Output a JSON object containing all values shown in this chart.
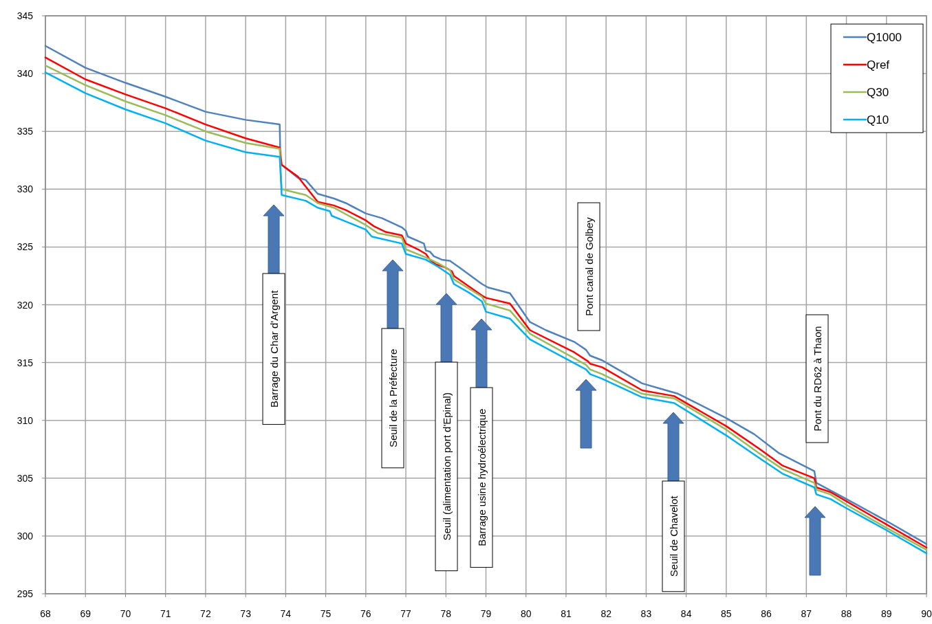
{
  "chart_data": {
    "type": "line",
    "xlim": [
      68,
      90
    ],
    "ylim": [
      295,
      345
    ],
    "xticks": [
      68,
      69,
      70,
      71,
      72,
      73,
      74,
      75,
      76,
      77,
      78,
      79,
      80,
      81,
      82,
      83,
      84,
      85,
      86,
      87,
      88,
      89,
      90
    ],
    "yticks": [
      295,
      300,
      305,
      310,
      315,
      320,
      325,
      330,
      335,
      340,
      345
    ],
    "grid": true,
    "legend": "top right",
    "marker": "none",
    "line_style": "solid",
    "series": [
      {
        "name": "Q1000",
        "color": "#4f81bd",
        "x": [
          68,
          69,
          70,
          71,
          72,
          73,
          73.85,
          73.87,
          74.3,
          74.5,
          74.8,
          75.2,
          75.5,
          76,
          76.4,
          76.9,
          77,
          77.05,
          77.45,
          77.5,
          77.6,
          77.7,
          77.9,
          78.1,
          78.35,
          78.9,
          79.05,
          79.6,
          80.1,
          80.5,
          81.2,
          81.5,
          81.6,
          81.9,
          82.2,
          82.9,
          83.5,
          83.8,
          85,
          85.7,
          86.3,
          87.2,
          87.25,
          88,
          89,
          90
        ],
        "values": [
          342.4,
          340.5,
          339.2,
          338,
          336.7,
          336,
          335.6,
          332.2,
          331,
          330.8,
          329.6,
          329.2,
          328.8,
          327.9,
          327.5,
          326.7,
          326.4,
          325.9,
          325.3,
          324.7,
          324.6,
          324.2,
          323.9,
          323.8,
          323.2,
          321.8,
          321.5,
          321,
          318.5,
          317.8,
          316.8,
          316.1,
          315.6,
          315.2,
          314.6,
          313.2,
          312.6,
          312.3,
          310.2,
          308.8,
          307.2,
          305.6,
          304.6,
          303.2,
          301.3,
          299.3
        ]
      },
      {
        "name": "Qref",
        "color": "#ff0000",
        "x": [
          68,
          69,
          70,
          71,
          72,
          73,
          73.85,
          73.9,
          74.3,
          74.8,
          75.2,
          75.5,
          76,
          76.2,
          76.5,
          76.9,
          77,
          77.3,
          77.5,
          77.6,
          77.75,
          78,
          78.15,
          78.2,
          78.9,
          79,
          79.6,
          80.1,
          81.2,
          81.55,
          81.6,
          81.9,
          82.9,
          83.7,
          85,
          85.8,
          86.4,
          87.2,
          87.25,
          87.6,
          88,
          89,
          90
        ],
        "values": [
          341.4,
          339.5,
          338.2,
          337,
          335.6,
          334.4,
          333.6,
          332.1,
          331.1,
          328.9,
          328.6,
          328.2,
          327.3,
          326.8,
          326.3,
          326,
          325.3,
          324.8,
          324.4,
          323.9,
          323.5,
          323.2,
          322.9,
          322.5,
          320.8,
          320.6,
          320.1,
          317.8,
          315.9,
          315.1,
          314.9,
          314.6,
          312.6,
          312.1,
          309.5,
          307.6,
          306.1,
          305,
          304.2,
          303.8,
          303,
          301,
          299
        ]
      },
      {
        "name": "Q30",
        "color": "#9bbb59",
        "x": [
          68,
          69,
          70,
          71,
          72,
          73,
          73.85,
          73.9,
          74.5,
          74.8,
          75.2,
          76,
          76.3,
          76.9,
          77,
          77.5,
          77.8,
          78.1,
          78.2,
          78.9,
          79,
          79.6,
          80.1,
          81.5,
          81.6,
          81.9,
          82.9,
          83.7,
          85,
          85.8,
          86.4,
          87.2,
          87.25,
          87.6,
          88,
          89,
          90
        ],
        "values": [
          340.7,
          339,
          337.6,
          336.4,
          335,
          334,
          333.5,
          330,
          329.5,
          328.8,
          328.4,
          326.9,
          326.2,
          325.8,
          324.8,
          324.1,
          323.6,
          323,
          322.2,
          320.7,
          320.1,
          319.5,
          317.5,
          314.8,
          314.4,
          314,
          312.3,
          311.9,
          309.2,
          307.2,
          305.8,
          304.6,
          304,
          303.6,
          302.7,
          300.7,
          298.8
        ]
      },
      {
        "name": "Q10",
        "color": "#00b0f0",
        "x": [
          68,
          69,
          70,
          71,
          72,
          73,
          73.85,
          73.9,
          74.5,
          74.8,
          75.1,
          75.15,
          76,
          76.15,
          76.9,
          77,
          77.5,
          77.8,
          78.1,
          78.2,
          78.6,
          78.9,
          79,
          79.6,
          80.1,
          81.5,
          81.6,
          81.9,
          82.9,
          83.7,
          85,
          85.8,
          86.4,
          87.2,
          87.25,
          87.6,
          88,
          89,
          90
        ],
        "values": [
          340.1,
          338.3,
          336.9,
          335.7,
          334.2,
          333.2,
          332.8,
          329.5,
          329,
          328.4,
          328.1,
          327.7,
          326.5,
          325.9,
          325.3,
          324.4,
          323.9,
          323.3,
          322.6,
          321.8,
          321,
          320.3,
          319.4,
          318.8,
          317,
          314.4,
          314,
          313.6,
          312,
          311.5,
          308.7,
          306.8,
          305.4,
          304.2,
          303.6,
          303.2,
          302.4,
          300.5,
          298.5
        ]
      }
    ],
    "annotations": [
      "Barrage du Char d'Argent",
      "Seuil de la Préfecture",
      "Seuil (alimentation port d'Epinal)",
      "Barrage usine hydroélectrique",
      "Pont canal de Golbey",
      "Seuil de Chavelot",
      "Pont du RD62 à Thaon"
    ]
  }
}
